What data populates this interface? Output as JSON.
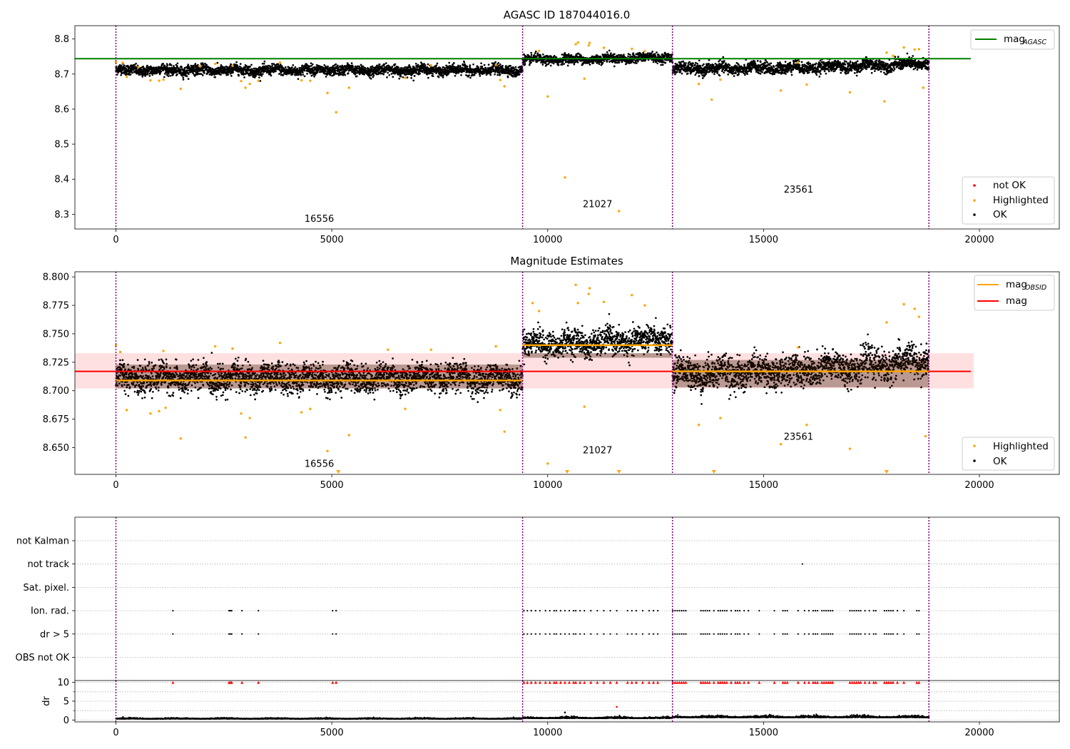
{
  "colors": {
    "ok": "#000000",
    "highlighted": "#ffa500",
    "not_ok": "#ff0000",
    "agasc_line": "#008000",
    "obsid_line": "#ffa500",
    "mean_line": "#ff0000",
    "band": "#ffcccc",
    "obs_boundary": "#800080",
    "flag_grid": "#b0b0b0",
    "band_region_tint": "#3a1400"
  },
  "chart_data": [
    {
      "type": "scatter",
      "title": "AGASC ID 187044016.0",
      "xlim": [
        -950,
        21850
      ],
      "ylim": [
        8.258,
        8.838
      ],
      "xticks": [
        0,
        5000,
        10000,
        15000,
        20000
      ],
      "yticks": [
        8.3,
        8.4,
        8.5,
        8.6,
        8.7,
        8.8
      ],
      "ytick_decimals": 1,
      "grid": false,
      "obs_boundaries": [
        0,
        9420,
        12890,
        18830
      ],
      "reference_line": {
        "label": "mag",
        "subscript": "AGASC",
        "y": 8.744,
        "x_range": [
          -950,
          19800
        ]
      },
      "obsids": [
        {
          "label": "16556",
          "x": 4710,
          "y": 8.278
        },
        {
          "label": "21027",
          "x": 11155,
          "y": 8.32
        },
        {
          "label": "23561",
          "x": 15810,
          "y": 8.362
        }
      ],
      "segments": [
        {
          "start": 0,
          "end": 9420,
          "level": 8.711,
          "scatter": 0.009,
          "trend": 0
        },
        {
          "start": 9420,
          "end": 12890,
          "level": 8.741,
          "scatter": 0.008,
          "trend": 0.008
        },
        {
          "start": 12890,
          "end": 18830,
          "level": 8.715,
          "scatter": 0.01,
          "trend": 0.015
        }
      ],
      "highlighted_points": [
        [
          0,
          8.734
        ],
        [
          150,
          8.732
        ],
        [
          250,
          8.692
        ],
        [
          520,
          8.72
        ],
        [
          800,
          8.682
        ],
        [
          1000,
          8.681
        ],
        [
          1100,
          8.684
        ],
        [
          1500,
          8.658
        ],
        [
          1950,
          8.722
        ],
        [
          2300,
          8.729
        ],
        [
          2700,
          8.724
        ],
        [
          2900,
          8.68
        ],
        [
          3000,
          8.661
        ],
        [
          3100,
          8.672
        ],
        [
          3300,
          8.681
        ],
        [
          3800,
          8.733
        ],
        [
          4300,
          8.682
        ],
        [
          4500,
          8.681
        ],
        [
          4900,
          8.646
        ],
        [
          5100,
          8.591
        ],
        [
          5400,
          8.661
        ],
        [
          6700,
          8.689
        ],
        [
          7300,
          8.725
        ],
        [
          8800,
          8.726
        ],
        [
          8900,
          8.683
        ],
        [
          9000,
          8.665
        ],
        [
          9800,
          8.766
        ],
        [
          10000,
          8.636
        ],
        [
          10400,
          8.405
        ],
        [
          10650,
          8.785
        ],
        [
          10700,
          8.79
        ],
        [
          10850,
          8.687
        ],
        [
          10950,
          8.782
        ],
        [
          10970,
          8.789
        ],
        [
          11300,
          8.775
        ],
        [
          11650,
          8.309
        ],
        [
          11950,
          8.772
        ],
        [
          12250,
          8.765
        ],
        [
          13500,
          8.672
        ],
        [
          13800,
          8.627
        ],
        [
          14000,
          8.684
        ],
        [
          15400,
          8.653
        ],
        [
          15800,
          8.733
        ],
        [
          16000,
          8.67
        ],
        [
          17000,
          8.648
        ],
        [
          17800,
          8.622
        ],
        [
          17850,
          8.761
        ],
        [
          18000,
          8.752
        ],
        [
          18250,
          8.776
        ],
        [
          18500,
          8.77
        ],
        [
          18600,
          8.771
        ],
        [
          18700,
          8.661
        ]
      ],
      "series": [
        {
          "name": "not OK",
          "marker": "dot"
        },
        {
          "name": "Highlighted",
          "marker": "dot"
        },
        {
          "name": "OK",
          "marker": "dot"
        }
      ],
      "legend_lines": [
        {
          "label": "mag",
          "subscript": "AGASC"
        }
      ],
      "legend_placement": {
        "lines": "top-right",
        "points": "bottom-right"
      }
    },
    {
      "type": "scatter",
      "title": "Magnitude Estimates",
      "xlim": [
        -950,
        21850
      ],
      "ylim": [
        8.6265,
        8.8045
      ],
      "xticks": [
        0,
        5000,
        10000,
        15000,
        20000
      ],
      "yticks": [
        8.65,
        8.675,
        8.7,
        8.725,
        8.75,
        8.775,
        8.8
      ],
      "ytick_decimals": 3,
      "grid": false,
      "obs_boundaries": [
        0,
        9420,
        12890,
        18830
      ],
      "mean_line": {
        "label": "mag",
        "y": 8.717,
        "x_range": [
          -950,
          19800
        ]
      },
      "band": {
        "y0": 8.702,
        "y1": 8.733
      },
      "obsid_levels": [
        {
          "start": 0,
          "end": 9420,
          "y": 8.709
        },
        {
          "start": 9420,
          "end": 12890,
          "y": 8.74
        },
        {
          "start": 12890,
          "end": 18830,
          "y": 8.717
        }
      ],
      "obsids": [
        {
          "label": "16556",
          "x": 4710,
          "y": 8.633
        },
        {
          "label": "21027",
          "x": 11155,
          "y": 8.645
        },
        {
          "label": "23561",
          "x": 15810,
          "y": 8.657
        }
      ],
      "segments": [
        {
          "start": 0,
          "end": 9420,
          "level": 8.711,
          "scatter": 0.0075,
          "trend": 0
        },
        {
          "start": 9420,
          "end": 12890,
          "level": 8.741,
          "scatter": 0.007,
          "trend": 0.005
        },
        {
          "start": 12890,
          "end": 18830,
          "level": 8.715,
          "scatter": 0.0085,
          "trend": 0.012
        }
      ],
      "highlighted_points": [
        [
          0,
          8.74
        ],
        [
          100,
          8.734
        ],
        [
          250,
          8.683
        ],
        [
          800,
          8.68
        ],
        [
          1000,
          8.682
        ],
        [
          1100,
          8.735
        ],
        [
          1150,
          8.685
        ],
        [
          1500,
          8.658
        ],
        [
          2300,
          8.739
        ],
        [
          2700,
          8.737
        ],
        [
          2900,
          8.68
        ],
        [
          3000,
          8.659
        ],
        [
          3100,
          8.676
        ],
        [
          3800,
          8.742
        ],
        [
          4300,
          8.681
        ],
        [
          4500,
          8.684
        ],
        [
          4900,
          8.647
        ],
        [
          5400,
          8.661
        ],
        [
          6300,
          8.736
        ],
        [
          6700,
          8.684
        ],
        [
          7300,
          8.736
        ],
        [
          8800,
          8.739
        ],
        [
          8900,
          8.683
        ],
        [
          9000,
          8.664
        ],
        [
          9650,
          8.777
        ],
        [
          9800,
          8.77
        ],
        [
          10000,
          8.636
        ],
        [
          10650,
          8.793
        ],
        [
          10700,
          8.777
        ],
        [
          10850,
          8.686
        ],
        [
          10950,
          8.785
        ],
        [
          10970,
          8.79
        ],
        [
          11300,
          8.778
        ],
        [
          11950,
          8.784
        ],
        [
          12250,
          8.775
        ],
        [
          13500,
          8.67
        ],
        [
          14000,
          8.676
        ],
        [
          15400,
          8.653
        ],
        [
          15800,
          8.738
        ],
        [
          16000,
          8.67
        ],
        [
          17000,
          8.649
        ],
        [
          17850,
          8.76
        ],
        [
          18250,
          8.776
        ],
        [
          18500,
          8.772
        ],
        [
          18600,
          8.765
        ],
        [
          18750,
          8.66
        ]
      ],
      "clipped_low_markers": [
        5150,
        10450,
        11650,
        13850,
        17850
      ],
      "series": [
        {
          "name": "Highlighted",
          "marker": "dot"
        },
        {
          "name": "OK",
          "marker": "dot"
        }
      ],
      "legend_lines": [
        {
          "label": "mag",
          "subscript": "OBSID"
        },
        {
          "label": "mag"
        }
      ],
      "legend_placement": {
        "lines": "top-right",
        "points": "bottom-right"
      }
    },
    {
      "type": "scatter",
      "title": "",
      "xlim": [
        -950,
        21850
      ],
      "xticks": [
        0,
        5000,
        10000,
        15000,
        20000
      ],
      "obs_boundaries": [
        0,
        9420,
        12890,
        18830
      ],
      "flag_rows": [
        "not Kalman",
        "not track",
        "Sat. pixel.",
        "Ion. rad.",
        "dr > 5",
        "OBS not OK"
      ],
      "flag_points": {
        "not track": [
          15900
        ],
        "Ion. rad.": [
          1320,
          2620,
          2650,
          2680,
          2920,
          3300,
          5020,
          5100,
          9450,
          9530,
          9620,
          9720,
          9820,
          9950,
          10050,
          10150,
          10200,
          10300,
          10400,
          10500,
          10600,
          10650,
          10750,
          10850,
          11000,
          11150,
          11300,
          11450,
          11600,
          11850,
          11950,
          12050,
          12200,
          12350,
          12450,
          12550,
          12900,
          12950,
          13000,
          13050,
          13100,
          13150,
          13200,
          13550,
          13600,
          13650,
          13700,
          13750,
          13850,
          13950,
          14000,
          14050,
          14100,
          14150,
          14250,
          14350,
          14400,
          14450,
          14550,
          14650,
          14900,
          15250,
          15450,
          15500,
          15550,
          15800,
          15950,
          16050,
          16150,
          16200,
          16250,
          16350,
          16400,
          16450,
          16500,
          16550,
          16600,
          17000,
          17050,
          17100,
          17150,
          17200,
          17250,
          17350,
          17450,
          17550,
          17600,
          17800,
          17850,
          17900,
          17950,
          18000,
          18100,
          18250,
          18550,
          18600
        ],
        "dr > 5": [
          1320,
          2620,
          2650,
          2680,
          2920,
          3300,
          5020,
          5100,
          9450,
          9530,
          9620,
          9720,
          9820,
          9950,
          10050,
          10150,
          10200,
          10300,
          10400,
          10500,
          10600,
          10650,
          10750,
          10850,
          11000,
          11150,
          11300,
          11450,
          11600,
          11850,
          11950,
          12050,
          12200,
          12350,
          12450,
          12550,
          12900,
          12950,
          13000,
          13050,
          13100,
          13150,
          13200,
          13550,
          13600,
          13650,
          13700,
          13750,
          13850,
          13950,
          14000,
          14050,
          14100,
          14150,
          14250,
          14350,
          14400,
          14450,
          14550,
          14650,
          14900,
          15250,
          15450,
          15500,
          15550,
          15800,
          15950,
          16050,
          16150,
          16200,
          16250,
          16350,
          16400,
          16450,
          16500,
          16550,
          16600,
          17000,
          17050,
          17100,
          17150,
          17200,
          17250,
          17350,
          17450,
          17550,
          17600,
          17800,
          17850,
          17900,
          17950,
          18000,
          18100,
          18250,
          18550,
          18600
        ]
      },
      "grid": "dotted rows"
    },
    {
      "type": "scatter",
      "title": "",
      "ylabel": "dr",
      "xlim": [
        -950,
        21850
      ],
      "ylim": [
        -0.5,
        10.5
      ],
      "xticks": [
        0,
        5000,
        10000,
        15000,
        20000
      ],
      "yticks": [
        0,
        5,
        10
      ],
      "obs_boundaries": [
        0,
        9420,
        12890,
        18830
      ],
      "segments": [
        {
          "start": 0,
          "end": 9420,
          "level": 0.3,
          "scatter": 0.12
        },
        {
          "start": 9420,
          "end": 12890,
          "level": 0.45,
          "scatter": 0.18
        },
        {
          "start": 12890,
          "end": 18830,
          "level": 0.65,
          "scatter": 0.25
        }
      ],
      "extra_points": [
        [
          10400,
          2.0
        ],
        [
          11600,
          3.5
        ]
      ],
      "capped_markers_at": 10,
      "grid": "dotted"
    }
  ]
}
